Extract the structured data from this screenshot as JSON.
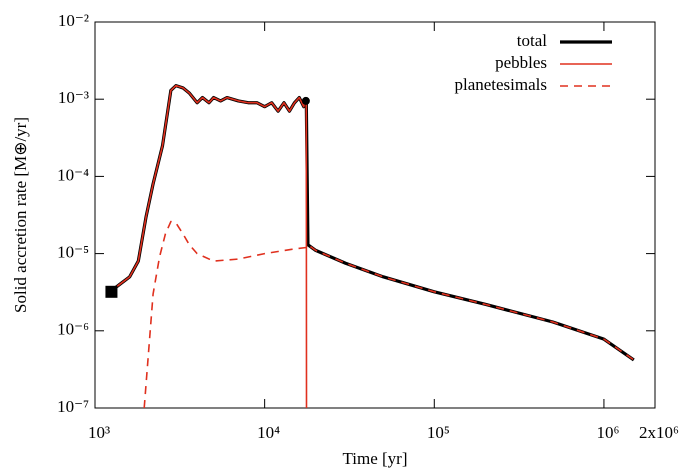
{
  "chart_data": {
    "type": "line",
    "xlabel": "Time [yr]",
    "ylabel": "Solid accretion rate [M⊕/yr]",
    "xscale": "log",
    "yscale": "log",
    "xlim": [
      1000,
      2000000
    ],
    "ylim": [
      1e-07,
      0.01
    ],
    "xticks": [
      {
        "value": 1000,
        "label": "10³"
      },
      {
        "value": 10000,
        "label": "10⁴"
      },
      {
        "value": 100000,
        "label": "10⁵"
      },
      {
        "value": 1000000,
        "label": "10⁶"
      },
      {
        "value": 2000000,
        "label": "2x10⁶"
      }
    ],
    "yticks": [
      {
        "value": 1e-07,
        "label": "10⁻⁷"
      },
      {
        "value": 1e-06,
        "label": "10⁻⁶"
      },
      {
        "value": 1e-05,
        "label": "10⁻⁵"
      },
      {
        "value": 0.0001,
        "label": "10⁻⁴"
      },
      {
        "value": 0.001,
        "label": "10⁻³"
      },
      {
        "value": 0.01,
        "label": "10⁻²"
      }
    ],
    "legend": "upper right",
    "series": [
      {
        "name": "total",
        "color": "#000000",
        "dash": false,
        "width": 3.2,
        "x": [
          1250,
          1400,
          1600,
          1800,
          2000,
          2200,
          2500,
          2800,
          3000,
          3300,
          3600,
          4000,
          4300,
          4700,
          5000,
          5500,
          6000,
          7000,
          8000,
          9000,
          10000,
          11000,
          12000,
          13000,
          14000,
          15000,
          16000,
          17000,
          17300,
          17600,
          18000,
          20000,
          30000,
          50000,
          100000,
          200000,
          500000,
          1000000,
          1500000
        ],
        "values": [
          3.3e-06,
          4e-06,
          5e-06,
          8e-06,
          3e-05,
          8e-05,
          0.00025,
          0.0013,
          0.0015,
          0.0014,
          0.0012,
          0.0009,
          0.00105,
          0.0009,
          0.00105,
          0.00095,
          0.00105,
          0.00095,
          0.0009,
          0.0009,
          0.0008,
          0.0009,
          0.0007,
          0.0009,
          0.0007,
          0.0009,
          0.00105,
          0.0008,
          0.001,
          0.00095,
          1.3e-05,
          1.1e-05,
          7.5e-06,
          5e-06,
          3.2e-06,
          2.2e-06,
          1.3e-06,
          7.8e-07,
          4.2e-07
        ]
      },
      {
        "name": "pebbles",
        "color": "#e0301e",
        "dash": false,
        "width": 1.6,
        "x": [
          1250,
          1400,
          1600,
          1800,
          2000,
          2200,
          2500,
          2800,
          3000,
          3300,
          3600,
          4000,
          4300,
          4700,
          5000,
          5500,
          6000,
          7000,
          8000,
          9000,
          10000,
          11000,
          12000,
          13000,
          14000,
          15000,
          16000,
          17000,
          17300,
          17600,
          17650
        ],
        "values": [
          3.3e-06,
          4e-06,
          5e-06,
          8e-06,
          3e-05,
          8e-05,
          0.00025,
          0.0013,
          0.0015,
          0.0014,
          0.0012,
          0.0009,
          0.00105,
          0.0009,
          0.00105,
          0.00095,
          0.00105,
          0.00095,
          0.0009,
          0.0009,
          0.0008,
          0.0009,
          0.0007,
          0.0009,
          0.0007,
          0.0009,
          0.00105,
          0.0008,
          0.001,
          0.00095,
          1e-07
        ]
      },
      {
        "name": "planetesimals",
        "color": "#e0301e",
        "dash": true,
        "width": 1.6,
        "x": [
          1950,
          2200,
          2400,
          2600,
          2800,
          3000,
          3300,
          3600,
          4000,
          5000,
          7000,
          10000,
          15000,
          17600,
          18000,
          20000,
          30000,
          50000,
          100000,
          200000,
          500000,
          1000000,
          1500000
        ],
        "values": [
          1e-07,
          3e-06,
          9e-06,
          1.8e-05,
          2.6e-05,
          2.5e-05,
          1.8e-05,
          1.3e-05,
          1e-05,
          8e-06,
          8.5e-06,
          1e-05,
          1.15e-05,
          1.2e-05,
          1.3e-05,
          1.1e-05,
          7.5e-06,
          5e-06,
          3.2e-06,
          2.2e-06,
          1.3e-06,
          7.8e-07,
          4.2e-07
        ]
      }
    ],
    "markers": [
      {
        "x": 1250,
        "y": 3.2e-06,
        "shape": "square",
        "color": "#000000"
      },
      {
        "x": 17500,
        "y": 0.00095,
        "shape": "circle",
        "color": "#000000"
      }
    ]
  }
}
